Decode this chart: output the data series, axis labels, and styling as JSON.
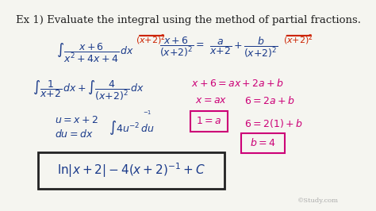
{
  "bg_color": "#f5f5f0",
  "title_text": "Ex 1) Evaluate the integral using the method of partial fractions.",
  "title_color": "#222222",
  "title_fontsize": 9.5,
  "blue_color": "#1a3a8a",
  "magenta_color": "#cc0077",
  "red_color": "#cc2200",
  "box_color": "#222222",
  "watermark": "©Study.com",
  "figsize": [
    4.74,
    2.66
  ],
  "dpi": 100
}
